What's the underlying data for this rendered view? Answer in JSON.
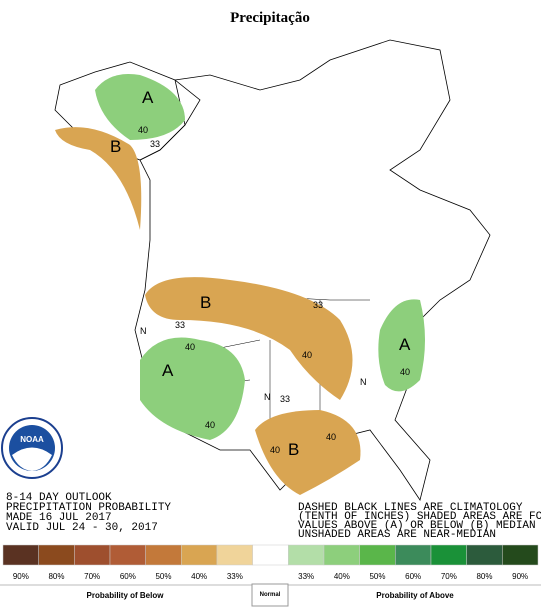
{
  "title": "Precipitação",
  "logo": "NOAA",
  "map": {
    "labels": [
      "A",
      "40",
      "33",
      "B",
      "B",
      "33",
      "40",
      "A",
      "40",
      "A",
      "40",
      "33",
      "N",
      "N",
      "B",
      "40",
      "40",
      "33",
      "N",
      "40"
    ]
  },
  "outlook_text": [
    "8-14 DAY OUTLOOK",
    "PRECIPITATION PROBABILITY",
    "MADE   16 JUL 2017",
    "VALID   JUL 24 - 30, 2017"
  ],
  "note_text": [
    "DASHED BLACK LINES ARE CLIMATOLOGY",
    "(TENTH OF INCHES) SHADED AREAS ARE FCST",
    "VALUES ABOVE (A) OR BELOW (B) MEDIAN",
    "UNSHADED AREAS ARE NEAR-MEDIAN"
  ],
  "legend": {
    "colors": [
      "#5a3222",
      "#8b4a1e",
      "#9e4f2e",
      "#b05c36",
      "#c3793a",
      "#d9a552",
      "#f0d49a",
      "#ffffff",
      "#b3dea8",
      "#8dcf7c",
      "#5ab64a",
      "#3c8b5b",
      "#1a9138",
      "#2c5b3c",
      "#244a1c"
    ],
    "labels": [
      "90%",
      "80%",
      "70%",
      "60%",
      "50%",
      "40%",
      "33%",
      "33%",
      "40%",
      "50%",
      "60%",
      "70%",
      "80%",
      "90%"
    ],
    "below_title": "Probability of Below",
    "normal_title": "Normal",
    "above_title": "Probability of Above"
  }
}
